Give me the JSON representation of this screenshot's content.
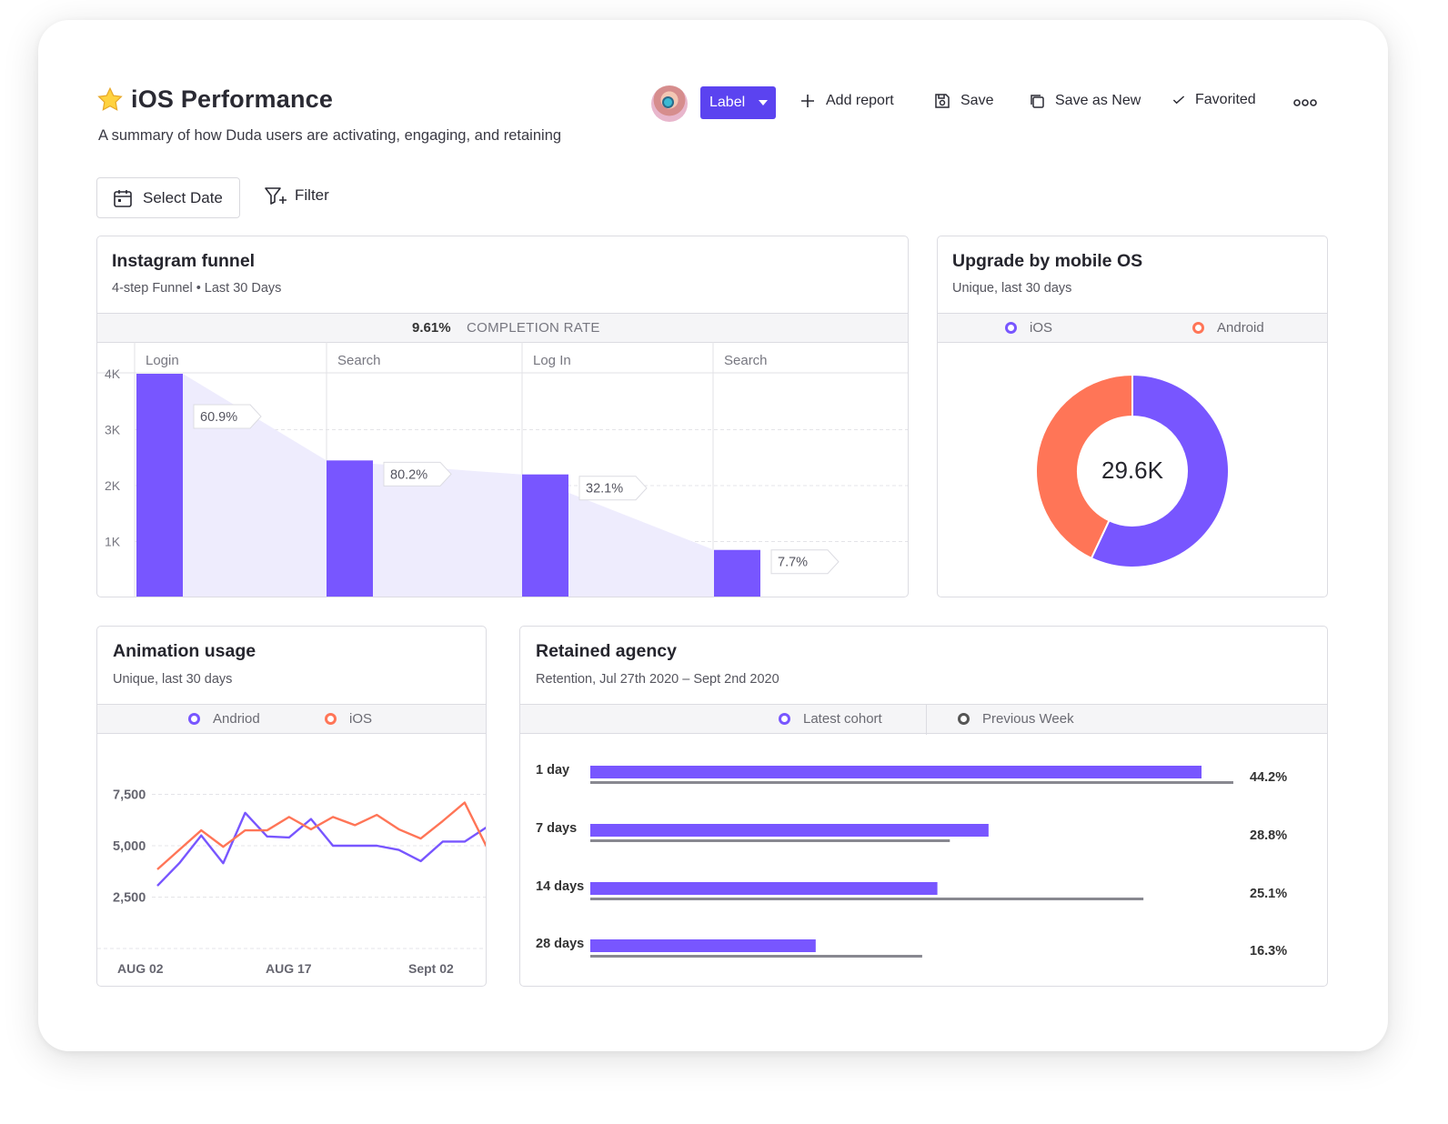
{
  "header": {
    "title": "iOS Performance",
    "subtitle": "A summary of how Duda users are activating, engaging, and retaining",
    "label_button": "Label",
    "add_report": "Add report",
    "save": "Save",
    "save_as_new": "Save as New",
    "favorited": "Favorited"
  },
  "controls": {
    "select_date": "Select Date",
    "filter": "Filter"
  },
  "funnel": {
    "title": "Instagram funnel",
    "subtitle": "4-step Funnel • Last 30 Days",
    "completion_value": "9.61%",
    "completion_label": "COMPLETION RATE",
    "y_ticks": [
      "4K",
      "3K",
      "2K",
      "1K"
    ],
    "steps": [
      {
        "label": "Login",
        "conversion": "60.9%"
      },
      {
        "label": "Search",
        "conversion": "80.2%"
      },
      {
        "label": "Log In",
        "conversion": "32.1%"
      },
      {
        "label": "Search",
        "conversion": "7.7%"
      }
    ]
  },
  "upgrade": {
    "title": "Upgrade by mobile OS",
    "subtitle": "Unique, last 30 days",
    "legend": [
      {
        "name": "iOS",
        "color": "#7856ff"
      },
      {
        "name": "Android",
        "color": "#ff7557"
      }
    ],
    "total": "29.6K"
  },
  "animation": {
    "title": "Animation usage",
    "subtitle": "Unique, last 30 days",
    "legend": [
      {
        "name": "Andriod",
        "color": "#7856ff"
      },
      {
        "name": "iOS",
        "color": "#ff7557"
      }
    ],
    "y_ticks": [
      "7,500",
      "5,000",
      "2,500"
    ],
    "x_ticks": [
      "AUG 02",
      "AUG 17",
      "Sept 02"
    ]
  },
  "retained": {
    "title": "Retained agency",
    "subtitle": "Retention, Jul 27th 2020 – Sept 2nd 2020",
    "legend": [
      {
        "name": "Latest cohort",
        "color": "#7856ff"
      },
      {
        "name": "Previous Week",
        "color": "#555555"
      }
    ],
    "rows": [
      {
        "label": "1 day",
        "pct": "44.2%"
      },
      {
        "label": "7 days",
        "pct": "28.8%"
      },
      {
        "label": "14 days",
        "pct": "25.1%"
      },
      {
        "label": "28 days",
        "pct": "16.3%"
      }
    ]
  },
  "chart_data": [
    {
      "type": "bar",
      "title": "Instagram funnel",
      "categories": [
        "Login",
        "Search",
        "Log In",
        "Search"
      ],
      "values": [
        4000,
        2450,
        2200,
        850
      ],
      "ylim": [
        0,
        4000
      ],
      "annotations": [
        "60.9%",
        "80.2%",
        "32.1%",
        "7.7%"
      ]
    },
    {
      "type": "pie",
      "title": "Upgrade by mobile OS",
      "categories": [
        "iOS",
        "Android"
      ],
      "values": [
        57,
        43
      ],
      "center_label": "29.6K"
    },
    {
      "type": "line",
      "title": "Animation usage",
      "x_ticks": [
        "AUG 02",
        "AUG 17",
        "Sept 02"
      ],
      "ylim": [
        0,
        10000
      ],
      "series": [
        {
          "name": "Andriod",
          "values": [
            3050,
            4150,
            5500,
            4150,
            6600,
            5450,
            5400,
            6300,
            5000,
            5000,
            5000,
            4800,
            4250,
            5200,
            5200,
            5900
          ]
        },
        {
          "name": "iOS",
          "values": [
            3850,
            4800,
            5750,
            4950,
            5750,
            5750,
            6400,
            5800,
            6400,
            6000,
            6500,
            5800,
            5350,
            6200,
            7100,
            4950
          ]
        }
      ]
    },
    {
      "type": "bar",
      "title": "Retained agency",
      "categories": [
        "1 day",
        "7 days",
        "14 days",
        "28 days"
      ],
      "series": [
        {
          "name": "Latest cohort",
          "values": [
            44.2,
            28.8,
            25.1,
            16.3
          ]
        },
        {
          "name": "Previous Week",
          "values": [
            46.5,
            26,
            40,
            24
          ]
        }
      ]
    }
  ]
}
